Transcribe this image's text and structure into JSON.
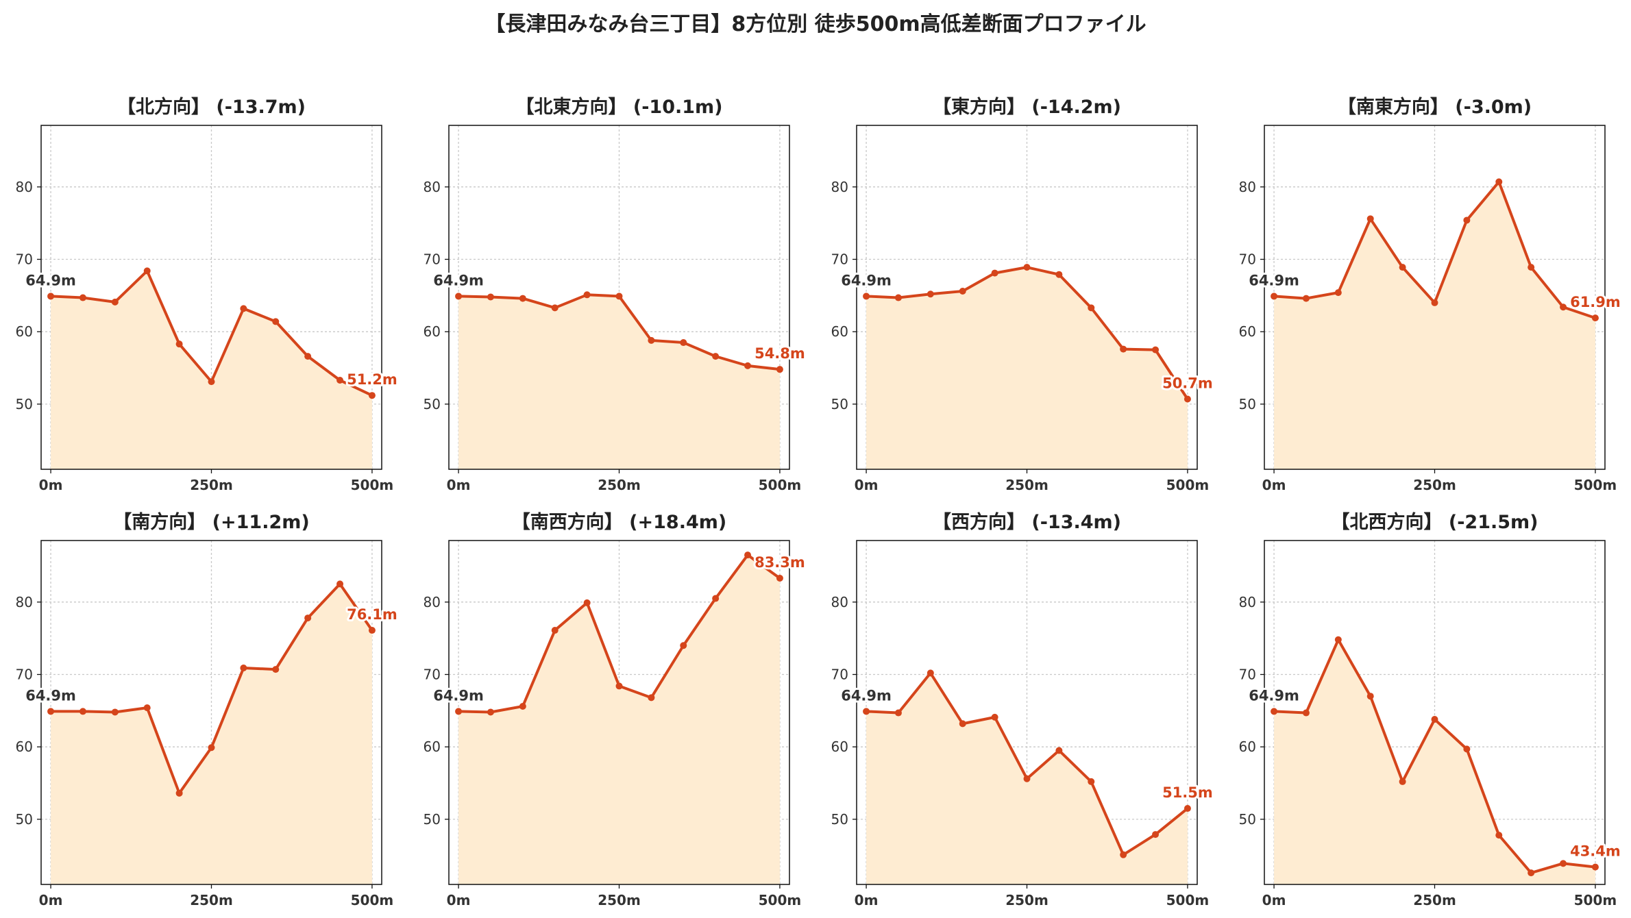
{
  "title": "【長津田みなみ台三丁目】8方位別 徒歩500m高低差断面プロファイル",
  "colors": {
    "line": "#d5451b",
    "fill": "#feecd2",
    "grid": "#c8c8c8",
    "start_label": "#333333",
    "end_label": "#d5451b"
  },
  "chart_data": {
    "type": "line",
    "x": [
      0,
      50,
      100,
      150,
      200,
      250,
      300,
      350,
      400,
      450,
      500
    ],
    "x_tick_values": [
      0,
      250,
      500
    ],
    "x_tick_labels": [
      "0m",
      "250m",
      "500m"
    ],
    "y_ticks": [
      50,
      60,
      70,
      80
    ],
    "ylim": [
      41,
      88.5
    ],
    "xlim": [
      -15,
      515
    ],
    "grid": true,
    "panels": [
      {
        "title": "【北方向】 (-13.7m)",
        "start_label": "64.9m",
        "end_label": "51.2m",
        "values": [
          64.9,
          64.7,
          64.1,
          68.4,
          58.3,
          53.1,
          63.2,
          61.4,
          56.6,
          53.3,
          51.2
        ]
      },
      {
        "title": "【北東方向】 (-10.1m)",
        "start_label": "64.9m",
        "end_label": "54.8m",
        "values": [
          64.9,
          64.8,
          64.6,
          63.3,
          65.1,
          64.9,
          58.8,
          58.5,
          56.6,
          55.3,
          54.8
        ]
      },
      {
        "title": "【東方向】 (-14.2m)",
        "start_label": "64.9m",
        "end_label": "50.7m",
        "values": [
          64.9,
          64.7,
          65.2,
          65.6,
          68.1,
          68.9,
          67.9,
          63.3,
          57.6,
          57.5,
          50.7
        ]
      },
      {
        "title": "【南東方向】 (-3.0m)",
        "start_label": "64.9m",
        "end_label": "61.9m",
        "values": [
          64.9,
          64.6,
          65.4,
          75.6,
          68.9,
          64.0,
          75.4,
          80.7,
          68.9,
          63.4,
          61.9
        ]
      },
      {
        "title": "【南方向】 (+11.2m)",
        "start_label": "64.9m",
        "end_label": "76.1m",
        "values": [
          64.9,
          64.9,
          64.8,
          65.4,
          53.6,
          59.9,
          70.9,
          70.7,
          77.8,
          82.5,
          76.1
        ]
      },
      {
        "title": "【南西方向】 (+18.4m)",
        "start_label": "64.9m",
        "end_label": "83.3m",
        "values": [
          64.9,
          64.8,
          65.6,
          76.1,
          79.9,
          68.4,
          66.8,
          74.0,
          80.5,
          86.5,
          83.3
        ]
      },
      {
        "title": "【西方向】 (-13.4m)",
        "start_label": "64.9m",
        "end_label": "51.5m",
        "values": [
          64.9,
          64.7,
          70.2,
          63.2,
          64.1,
          55.6,
          59.5,
          55.2,
          45.1,
          47.9,
          51.5
        ]
      },
      {
        "title": "【北西方向】 (-21.5m)",
        "start_label": "64.9m",
        "end_label": "43.4m",
        "values": [
          64.9,
          64.7,
          74.8,
          67.0,
          55.2,
          63.8,
          59.7,
          47.8,
          42.6,
          43.9,
          43.4
        ]
      }
    ]
  }
}
